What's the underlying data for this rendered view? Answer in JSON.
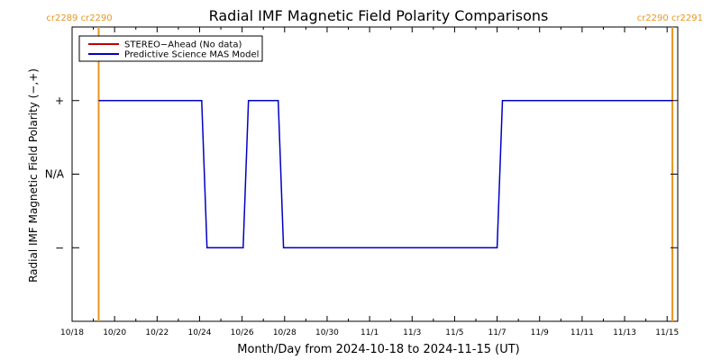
{
  "chart_data": {
    "type": "line",
    "title": "Radial IMF Magnetic Field Polarity Comparisons",
    "xlabel": "Month/Day from 2024-10-18 to 2024-11-15 (UT)",
    "ylabel": "Radial IMF Magnetic Field Polarity (−,+)",
    "xlim": [
      0,
      28.5
    ],
    "ylim": [
      -2,
      2
    ],
    "x_ticks": [
      {
        "x": 0,
        "label": "10/18"
      },
      {
        "x": 2,
        "label": "10/20"
      },
      {
        "x": 4,
        "label": "10/22"
      },
      {
        "x": 6,
        "label": "10/24"
      },
      {
        "x": 8,
        "label": "10/26"
      },
      {
        "x": 10,
        "label": "10/28"
      },
      {
        "x": 12,
        "label": "10/30"
      },
      {
        "x": 14,
        "label": "11/1"
      },
      {
        "x": 16,
        "label": "11/3"
      },
      {
        "x": 18,
        "label": "11/5"
      },
      {
        "x": 20,
        "label": "11/7"
      },
      {
        "x": 22,
        "label": "11/9"
      },
      {
        "x": 24,
        "label": "11/11"
      },
      {
        "x": 26,
        "label": "11/13"
      },
      {
        "x": 28,
        "label": "11/15"
      }
    ],
    "y_ticks": [
      {
        "y": 1,
        "label": "+"
      },
      {
        "y": 0,
        "label": "N/A"
      },
      {
        "y": -1,
        "label": "−"
      }
    ],
    "series": [
      {
        "name": "STEREO−Ahead (No data)",
        "color": "#c00000",
        "points": []
      },
      {
        "name": "Predictive Science MAS Model",
        "color": "#0000c8",
        "points": [
          [
            1.25,
            1
          ],
          [
            6.1,
            1
          ],
          [
            6.35,
            -1
          ],
          [
            8.05,
            -1
          ],
          [
            8.3,
            1
          ],
          [
            9.7,
            1
          ],
          [
            9.95,
            -1
          ],
          [
            20.0,
            -1
          ],
          [
            20.25,
            1
          ],
          [
            28.25,
            1
          ]
        ]
      }
    ],
    "carrington_markers": [
      {
        "x": 1.25,
        "labels": [
          "cr2289",
          "cr2290"
        ],
        "color": "#e8961e"
      },
      {
        "x": 28.25,
        "labels": [
          "cr2290",
          "cr2291"
        ],
        "color": "#e8961e"
      }
    ],
    "legend_position": "top-left",
    "grid": false
  }
}
